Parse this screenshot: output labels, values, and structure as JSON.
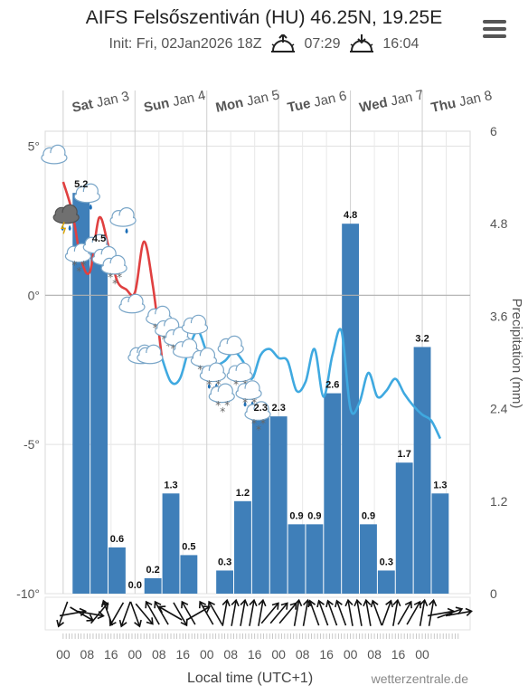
{
  "header": {
    "title": "AIFS Felsőszentiván (HU) 46.25N, 19.25E",
    "init": "Init: Fri, 02Jan2026 18Z",
    "sunrise": "07:29",
    "sunset": "16:04"
  },
  "icons": {
    "menu": "hamburger-menu-icon",
    "sunrise": "sunrise-icon",
    "sunset": "sunset-icon"
  },
  "chart_data": {
    "type": "bar+line",
    "days": [
      {
        "dow": "Sat",
        "date": "Jan 3"
      },
      {
        "dow": "Sun",
        "date": "Jan 4"
      },
      {
        "dow": "Mon",
        "date": "Jan 5"
      },
      {
        "dow": "Tue",
        "date": "Jan 6"
      },
      {
        "dow": "Wed",
        "date": "Jan 7"
      },
      {
        "dow": "Thu",
        "date": "Jan 8"
      }
    ],
    "left_axis": {
      "ticks": [
        "5°",
        "0°",
        "-5°",
        "-10°"
      ],
      "values": [
        5,
        0,
        -5,
        -10
      ],
      "ylim": [
        -10,
        5.5
      ]
    },
    "right_axis": {
      "label": "Precipitation (mm)",
      "ticks": [
        "6",
        "4.8",
        "3.6",
        "2.4",
        "1.2",
        "0"
      ],
      "values": [
        6,
        4.8,
        3.6,
        2.4,
        1.2,
        0
      ],
      "ylim": [
        0,
        6
      ]
    },
    "x_ticks": [
      "00",
      "08",
      "16",
      "00",
      "08",
      "16",
      "00",
      "08",
      "16",
      "00",
      "08",
      "16",
      "00",
      "08",
      "16",
      "00"
    ],
    "xlabel": "Local time (UTC+1)",
    "credit": "wetterzentrale.de",
    "precip_series": {
      "name": "Precipitation (mm)",
      "x_hours": [
        6,
        12,
        18,
        24,
        30,
        36,
        42,
        48,
        54,
        60,
        66,
        72,
        78,
        84,
        90,
        96,
        102,
        108,
        114,
        120,
        126,
        132,
        138
      ],
      "values": [
        5.2,
        4.5,
        0.6,
        0.0,
        0.2,
        1.3,
        0.5,
        null,
        0.3,
        1.2,
        2.3,
        2.3,
        0.9,
        0.9,
        2.6,
        4.8,
        0.9,
        0.3,
        1.7,
        3.2,
        1.3,
        null,
        null
      ],
      "labels": [
        "5.2",
        "4.5",
        "0.6",
        "0.0",
        "0.2",
        "1.3",
        "0.5",
        "",
        "0.3",
        "1.2",
        "2.3",
        "2.3",
        "0.9",
        "0.9",
        "2.6",
        "4.8",
        "0.9",
        "0.3",
        "1.7",
        "3.2",
        "1.3",
        "",
        ""
      ],
      "color": "#3f7fb9"
    },
    "temp_series": {
      "name": "Temperature",
      "x_hours": [
        0,
        3,
        6,
        9,
        12,
        15,
        18,
        21,
        24,
        27,
        30,
        33,
        36,
        39,
        42,
        45,
        48,
        51,
        54,
        57,
        60,
        63,
        66,
        69,
        72,
        75,
        78,
        81,
        84,
        87,
        90,
        93,
        96,
        99,
        102,
        105,
        108,
        111,
        114,
        117,
        120,
        123,
        126
      ],
      "values": [
        3.8,
        2.8,
        1.2,
        0.8,
        2.6,
        1.7,
        0.5,
        0.2,
        0.1,
        1.8,
        0.3,
        -2.1,
        -2.9,
        -2.8,
        -1.8,
        -1.2,
        -1.9,
        -2.3,
        -2.2,
        -1.9,
        -2.2,
        -2.8,
        -2.0,
        -1.8,
        -2.1,
        -2.2,
        -3.2,
        -2.9,
        -1.8,
        -3.4,
        -2.0,
        -1.2,
        -3.8,
        -3.6,
        -2.6,
        -3.4,
        -3.2,
        -2.8,
        -3.3,
        -3.7,
        -4.0,
        -4.2,
        -4.8
      ],
      "warm_color": "#e04040",
      "cold_color": "#3fa9e0"
    },
    "weather_icons": [
      {
        "h": -3,
        "t": 4.7,
        "kind": "cloud"
      },
      {
        "h": 1,
        "t": 2.7,
        "kind": "thunder-rain"
      },
      {
        "h": 5,
        "t": 1.4,
        "kind": "snow"
      },
      {
        "h": 8,
        "t": 3.4,
        "kind": "rain"
      },
      {
        "h": 11,
        "t": 1.7,
        "kind": "cloud"
      },
      {
        "h": 14,
        "t": 1.3,
        "kind": "cloud"
      },
      {
        "h": 17,
        "t": 1.0,
        "kind": "snow"
      },
      {
        "h": 20,
        "t": 2.6,
        "kind": "rain"
      },
      {
        "h": 23,
        "t": -0.3,
        "kind": "cloud"
      },
      {
        "h": 26,
        "t": -2.0,
        "kind": "cloud"
      },
      {
        "h": 29,
        "t": -2.0,
        "kind": "cloud"
      },
      {
        "h": 32,
        "t": -0.7,
        "kind": "snow"
      },
      {
        "h": 35,
        "t": -1.1,
        "kind": "snow"
      },
      {
        "h": 38,
        "t": -1.4,
        "kind": "snow"
      },
      {
        "h": 41,
        "t": -1.8,
        "kind": "cloud"
      },
      {
        "h": 44,
        "t": -1.0,
        "kind": "cloud"
      },
      {
        "h": 47,
        "t": -2.1,
        "kind": "snow"
      },
      {
        "h": 50,
        "t": -2.6,
        "kind": "rain-snow"
      },
      {
        "h": 53,
        "t": -3.3,
        "kind": "snow"
      },
      {
        "h": 56,
        "t": -1.7,
        "kind": "cloud"
      },
      {
        "h": 59,
        "t": -2.6,
        "kind": "snow"
      },
      {
        "h": 62,
        "t": -3.2,
        "kind": "rain-snow"
      },
      {
        "h": 65,
        "t": -3.9,
        "kind": "snow"
      }
    ],
    "wind_angles": [
      200,
      80,
      120,
      100,
      40,
      340,
      210,
      200,
      160,
      140,
      330,
      330,
      300,
      150,
      330,
      60,
      330,
      330,
      10,
      10,
      10,
      10,
      10,
      40,
      40,
      40,
      10,
      10,
      340,
      340,
      340,
      340,
      350,
      350,
      350,
      340,
      20,
      10,
      30,
      30,
      10,
      10,
      80,
      70,
      80
    ],
    "grid": true
  }
}
